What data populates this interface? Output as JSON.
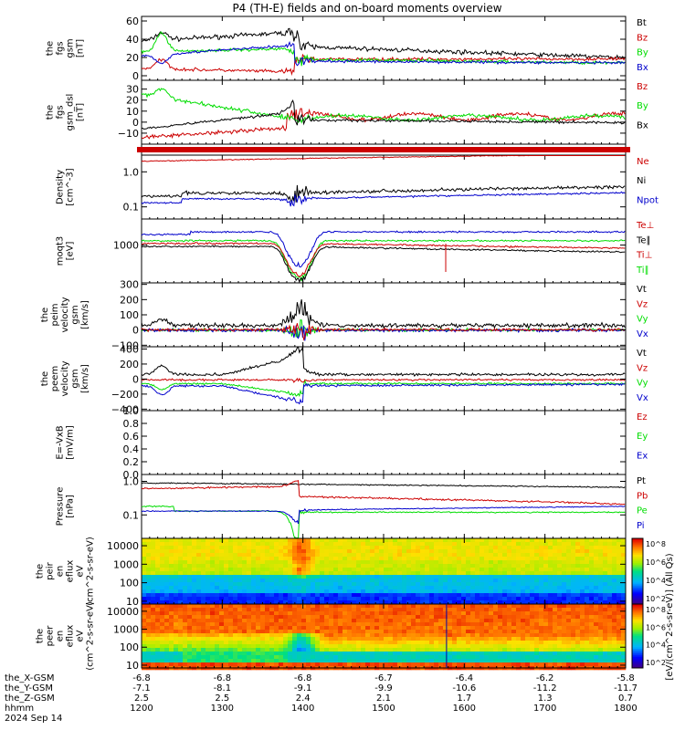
{
  "title": "P4 (TH-E) fields and on-board moments overview",
  "colors": {
    "black": "#000000",
    "red": "#cc0000",
    "green": "#00dd00",
    "blue": "#0000cc"
  },
  "xaxis": {
    "times": [
      1200,
      1300,
      1400,
      1500,
      1600,
      1700,
      1800
    ],
    "rows": [
      {
        "label": "the_X-GSM",
        "values": [
          "-6.8",
          "-6.8",
          "-6.8",
          "-6.7",
          "-6.4",
          "-6.2",
          "-5.8"
        ]
      },
      {
        "label": "the_Y-GSM",
        "values": [
          "-7.1",
          "-8.1",
          "-9.1",
          "-9.9",
          "-10.6",
          "-11.2",
          "-11.7"
        ]
      },
      {
        "label": "the_Z-GSM",
        "values": [
          "2.5",
          "2.5",
          "2.4",
          "2.1",
          "1.7",
          "1.3",
          "0.7"
        ]
      },
      {
        "label": "hhmm",
        "values": [
          "1200",
          "1300",
          "1400",
          "1500",
          "1600",
          "1700",
          "1800"
        ]
      }
    ],
    "date": "2024 Sep 14"
  },
  "colorbar": {
    "ticks": [
      "10^8",
      "10^6",
      "10^4",
      "10^2"
    ],
    "label": "[eV/(cm^2-s-sr-eV)] (All Qs)"
  },
  "chart_data": [
    {
      "type": "line",
      "id": "fgs_gsm",
      "ylabel": "the fgs gsm [nT]",
      "ylim": [
        -5,
        65
      ],
      "ticks": [
        0,
        20,
        40,
        60
      ],
      "series": [
        {
          "name": "Bt",
          "color": "black"
        },
        {
          "name": "Bz",
          "color": "red"
        },
        {
          "name": "By",
          "color": "green"
        },
        {
          "name": "Bx",
          "color": "blue"
        }
      ]
    },
    {
      "type": "line",
      "id": "fgs_dsl",
      "ylabel": "the fgs gsm_dsl [nT]",
      "ylim": [
        -20,
        38
      ],
      "ticks": [
        -10,
        0,
        10,
        20,
        30
      ],
      "series": [
        {
          "name": "Bz",
          "color": "red"
        },
        {
          "name": "By",
          "color": "green"
        },
        {
          "name": "Bx",
          "color": "black"
        }
      ]
    },
    {
      "type": "line",
      "id": "density",
      "ylabel": "Density [cm^-3]",
      "ylim": [
        0.045,
        3
      ],
      "log": true,
      "ticks": [
        0.1,
        1.0
      ],
      "series": [
        {
          "name": "Ne",
          "color": "red"
        },
        {
          "name": "Ni",
          "color": "black"
        },
        {
          "name": "Npot",
          "color": "blue"
        }
      ]
    },
    {
      "type": "line",
      "id": "temperature",
      "ylabel": "moqt3 [eV]",
      "ylim": [
        180,
        12000
      ],
      "log": true,
      "reversed": true,
      "ticks": [
        1000
      ],
      "series": [
        {
          "name": "Te⊥",
          "color": "red"
        },
        {
          "name": "Te∥",
          "color": "black"
        },
        {
          "name": "Ti⊥",
          "color": "red"
        },
        {
          "name": "Ti∥",
          "color": "green"
        }
      ]
    },
    {
      "type": "line",
      "id": "vel_peim",
      "ylabel": "the peim velocity gsm [km/s]",
      "ylim": [
        -110,
        310
      ],
      "ticks": [
        -100,
        0,
        100,
        200,
        300
      ],
      "series": [
        {
          "name": "Vt",
          "color": "black"
        },
        {
          "name": "Vz",
          "color": "red"
        },
        {
          "name": "Vy",
          "color": "green"
        },
        {
          "name": "Vx",
          "color": "blue"
        }
      ]
    },
    {
      "type": "line",
      "id": "vel_peem",
      "ylabel": "the peem velocity gsm [km/s]",
      "ylim": [
        -420,
        430
      ],
      "ticks": [
        -400,
        -200,
        0,
        200,
        400
      ],
      "series": [
        {
          "name": "Vt",
          "color": "black"
        },
        {
          "name": "Vz",
          "color": "red"
        },
        {
          "name": "Vy",
          "color": "green"
        },
        {
          "name": "Vx",
          "color": "blue"
        }
      ]
    },
    {
      "type": "line",
      "id": "efield",
      "ylabel": "E=-VxB [mV/m]",
      "ylim": [
        0,
        1.0
      ],
      "ticks": [
        "0.0",
        "0.2",
        "0.4",
        "0.6",
        "0.8",
        "1.0"
      ],
      "series": [
        {
          "name": "Ez",
          "color": "red"
        },
        {
          "name": "Ey",
          "color": "green"
        },
        {
          "name": "Ex",
          "color": "blue"
        }
      ]
    },
    {
      "type": "line",
      "id": "pressure",
      "ylabel": "Pressure [nPa]",
      "ylim": [
        0.02,
        1.6
      ],
      "log": true,
      "ticks": [
        0.1,
        1.0
      ],
      "series": [
        {
          "name": "Pt",
          "color": "black"
        },
        {
          "name": "Pb",
          "color": "red"
        },
        {
          "name": "Pe",
          "color": "green"
        },
        {
          "name": "Pi",
          "color": "blue"
        }
      ]
    },
    {
      "type": "heatmap",
      "id": "peir",
      "ylabel": "the peir en eflux eV (cm^2-s-sr-eV)",
      "ylim": [
        7,
        25000
      ],
      "log": true,
      "ticks": [
        10,
        100,
        1000,
        10000
      ]
    },
    {
      "type": "heatmap",
      "id": "peer",
      "ylabel": "the peer en eflux eV (cm^2-s-sr-eV)",
      "ylim": [
        7,
        25000
      ],
      "log": true,
      "ticks": [
        10,
        100,
        1000,
        10000
      ]
    }
  ],
  "tick_labels": {
    "fgs_gsm": [
      "0",
      "20",
      "40",
      "60"
    ],
    "fgs_dsl": [
      "−10",
      "0",
      "10",
      "20",
      "30"
    ],
    "density": [
      "0.1",
      "1.0"
    ],
    "temperature": [
      "1000"
    ],
    "vel_peim": [
      "−100",
      "0",
      "100",
      "200",
      "300"
    ],
    "vel_peem": [
      "−400",
      "−200",
      "0",
      "200",
      "400"
    ],
    "efield": [
      "0.0",
      "0.2",
      "0.4",
      "0.6",
      "0.8",
      "1.0"
    ],
    "pressure": [
      "0.1",
      "1.0"
    ],
    "peir": [
      "10",
      "100",
      "1000",
      "10000"
    ],
    "peer": [
      "10",
      "100",
      "1000",
      "10000"
    ]
  }
}
